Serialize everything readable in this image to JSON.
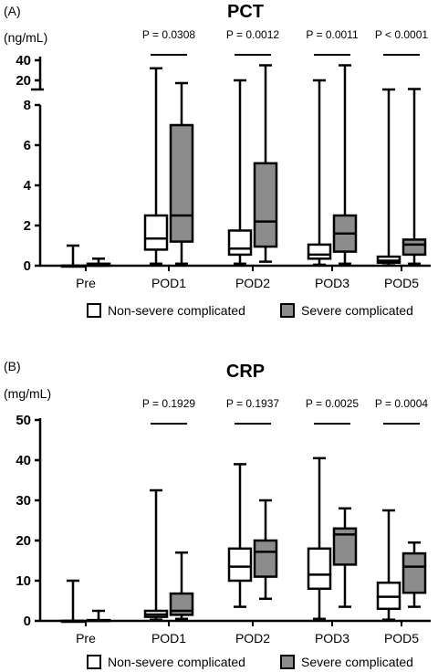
{
  "chart_data": [
    {
      "panel_label": "(A)",
      "type": "box",
      "title": "PCT",
      "unit": "(ng/mL)",
      "categories": [
        "Pre",
        "POD1",
        "POD2",
        "POD3",
        "POD5"
      ],
      "y_ticks": [
        "0",
        "2",
        "4",
        "6",
        "8",
        "20",
        "40"
      ],
      "axis_break": true,
      "ylim": [
        0,
        40
      ],
      "p_values": [
        "",
        "P = 0.0308",
        "P = 0.0012",
        "P = 0.0011",
        "P < 0.0001"
      ],
      "legend": [
        "Non-severe complicated",
        "Severe complicated"
      ],
      "legend_position": "bottom",
      "series": [
        {
          "name": "Non-severe complicated",
          "color": "#ffffff",
          "boxes": [
            {
              "min": 0,
              "q1": 0,
              "median": 0,
              "q3": 0,
              "max": 1.0
            },
            {
              "min": 0.1,
              "q1": 0.8,
              "median": 1.35,
              "q3": 2.5,
              "max": 32
            },
            {
              "min": 0.1,
              "q1": 0.55,
              "median": 0.85,
              "q3": 1.75,
              "max": 20
            },
            {
              "min": 0.05,
              "q1": 0.35,
              "median": 0.55,
              "q3": 1.05,
              "max": 20
            },
            {
              "min": 0.02,
              "q1": 0.15,
              "median": 0.25,
              "q3": 0.45,
              "max": 10
            }
          ]
        },
        {
          "name": "Severe complicated",
          "color": "#8c8c8c",
          "boxes": [
            {
              "min": 0,
              "q1": 0,
              "median": 0.05,
              "q3": 0.1,
              "max": 0.35
            },
            {
              "min": 0.1,
              "q1": 1.2,
              "median": 2.5,
              "q3": 7.0,
              "max": 17
            },
            {
              "min": 0.2,
              "q1": 0.95,
              "median": 2.2,
              "q3": 5.1,
              "max": 35
            },
            {
              "min": 0.1,
              "q1": 0.7,
              "median": 1.6,
              "q3": 2.5,
              "max": 35
            },
            {
              "min": 0.1,
              "q1": 0.55,
              "median": 1.05,
              "q3": 1.3,
              "max": 10.5
            }
          ]
        }
      ]
    },
    {
      "panel_label": "(B)",
      "type": "box",
      "title": "CRP",
      "unit": "(mg/mL)",
      "categories": [
        "Pre",
        "POD1",
        "POD2",
        "POD3",
        "POD5"
      ],
      "y_ticks": [
        "0",
        "10",
        "20",
        "30",
        "40",
        "50"
      ],
      "ylim": [
        0,
        50
      ],
      "p_values": [
        "",
        "P = 0.1929",
        "P = 0.1937",
        "P = 0.0025",
        "P = 0.0004"
      ],
      "legend": [
        "Non-severe complicated",
        "Severe complicated"
      ],
      "legend_position": "bottom",
      "series": [
        {
          "name": "Non-severe complicated",
          "color": "#ffffff",
          "boxes": [
            {
              "min": 0,
              "q1": 0,
              "median": 0,
              "q3": 0,
              "max": 10
            },
            {
              "min": 0.3,
              "q1": 1.0,
              "median": 1.6,
              "q3": 2.5,
              "max": 32.5
            },
            {
              "min": 3.5,
              "q1": 10.0,
              "median": 13.5,
              "q3": 18.0,
              "max": 39
            },
            {
              "min": 0.5,
              "q1": 8.0,
              "median": 11.5,
              "q3": 18.0,
              "max": 40.5
            },
            {
              "min": 0.3,
              "q1": 3.0,
              "median": 6.0,
              "q3": 9.5,
              "max": 27.5
            }
          ]
        },
        {
          "name": "Severe complicated",
          "color": "#8c8c8c",
          "boxes": [
            {
              "min": 0,
              "q1": 0,
              "median": 0.1,
              "q3": 0.2,
              "max": 2.5
            },
            {
              "min": 0.5,
              "q1": 1.5,
              "median": 2.5,
              "q3": 6.8,
              "max": 17
            },
            {
              "min": 5.5,
              "q1": 11.0,
              "median": 17.2,
              "q3": 20.0,
              "max": 30
            },
            {
              "min": 3.5,
              "q1": 14.0,
              "median": 21.5,
              "q3": 23.0,
              "max": 28
            },
            {
              "min": 3.5,
              "q1": 7.0,
              "median": 13.5,
              "q3": 16.8,
              "max": 19.5
            }
          ]
        }
      ]
    }
  ]
}
